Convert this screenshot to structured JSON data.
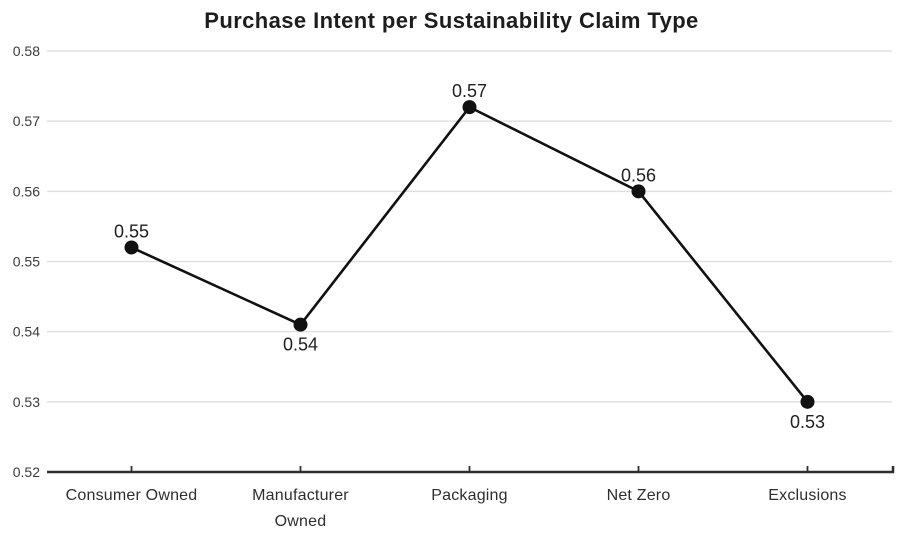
{
  "page": {
    "background": "#ffffff"
  },
  "chart_data": {
    "type": "line",
    "title": "Purchase Intent per Sustainability Claim Type",
    "categories": [
      "Consumer Owned",
      "Manufacturer Owned",
      "Packaging",
      "Net Zero",
      "Exclusions"
    ],
    "values": [
      0.55,
      0.54,
      0.57,
      0.56,
      0.53
    ],
    "values_plotted": [
      0.552,
      0.541,
      0.572,
      0.56,
      0.53
    ],
    "point_labels": [
      "0.55",
      "0.54",
      "0.57",
      "0.56",
      "0.53"
    ],
    "point_label_positions": [
      "above",
      "below",
      "above",
      "above",
      "below"
    ],
    "y_ticks": [
      0.52,
      0.53,
      0.54,
      0.55,
      0.56,
      0.57,
      0.58
    ],
    "ylim": [
      0.52,
      0.58
    ],
    "xlabel": "",
    "ylabel": "",
    "grid": "horizontal",
    "legend": "none",
    "marker_radius": 7,
    "colors": {
      "line": "#111111",
      "marker": "#111111",
      "grid": "#e0e0e0",
      "axis": "#2e2e2e",
      "title": "#1d1d1f",
      "y_tick_label": "#3b3b3b",
      "category_label": "#2e2e2e",
      "point_label": "#1f1f1f",
      "background": "#ffffff"
    }
  }
}
